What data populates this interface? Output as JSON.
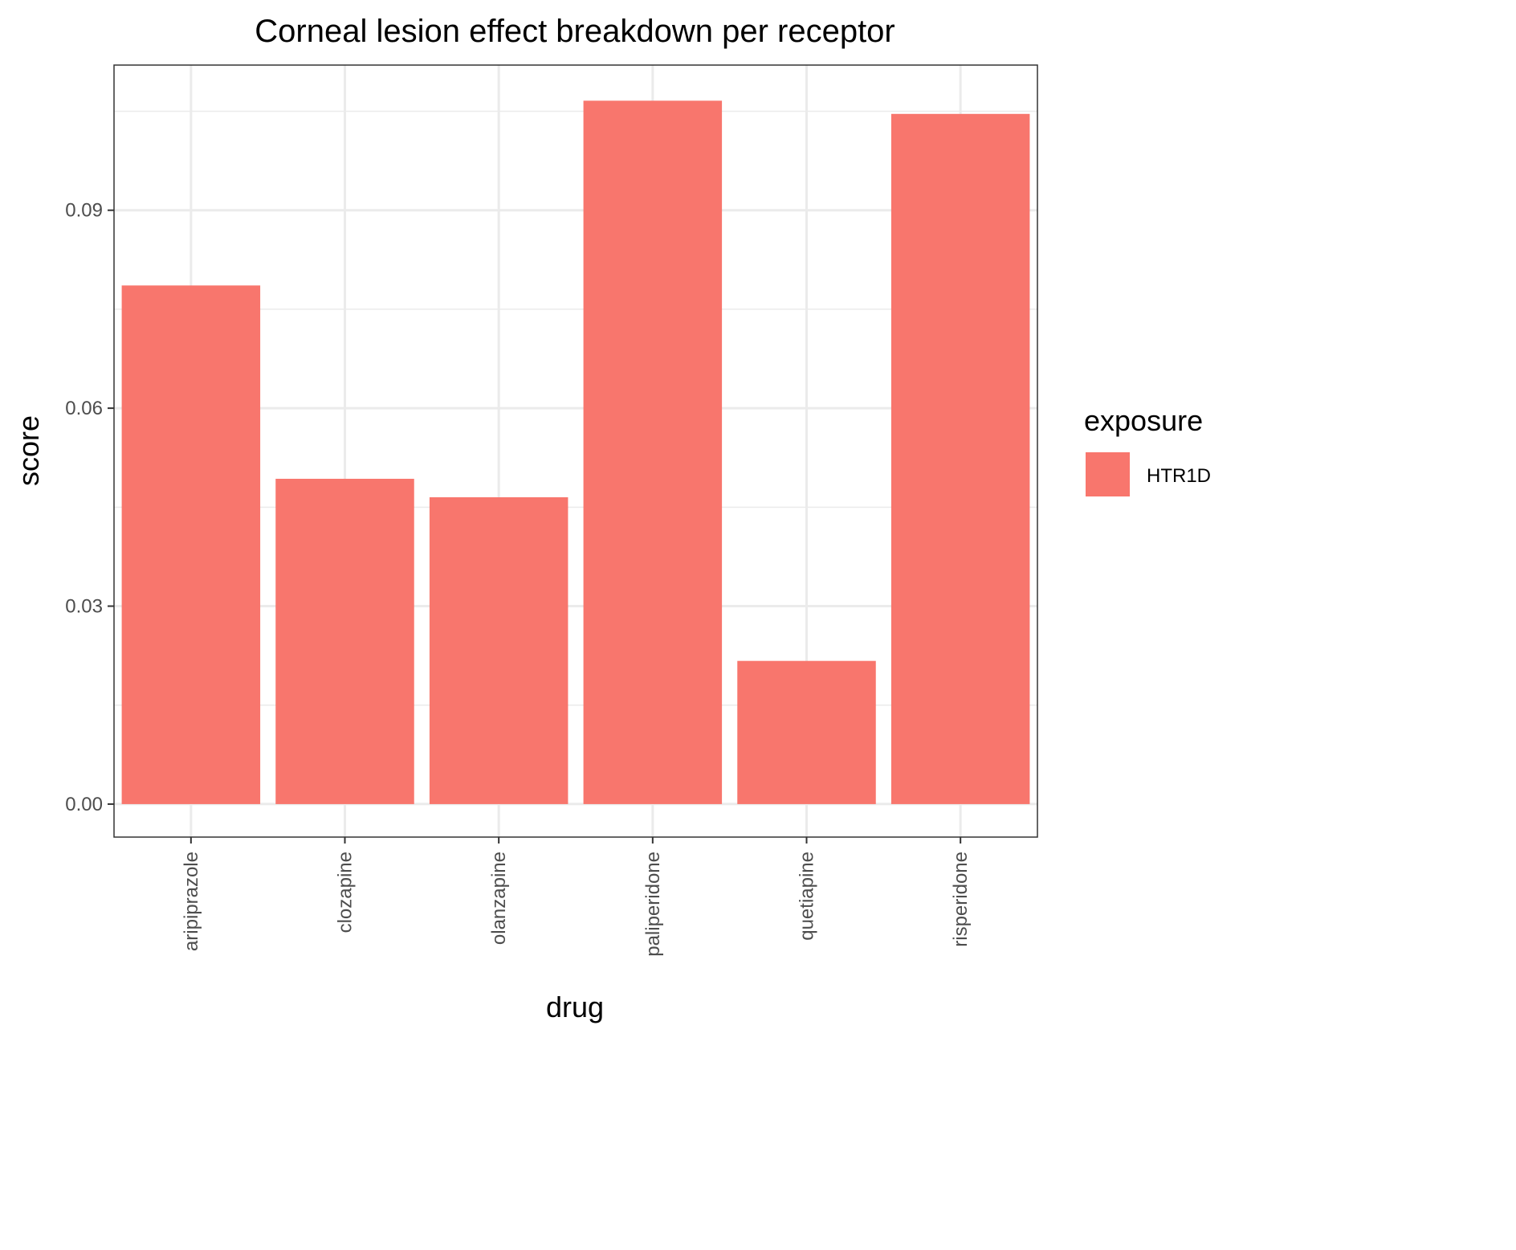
{
  "chart_data": {
    "type": "bar",
    "title": "Corneal lesion effect breakdown per receptor",
    "xlabel": "drug",
    "ylabel": "score",
    "categories": [
      "aripiprazole",
      "clozapine",
      "olanzapine",
      "paliperidone",
      "quetiapine",
      "risperidone"
    ],
    "series": [
      {
        "name": "HTR1D",
        "values": [
          0.0786,
          0.0493,
          0.0465,
          0.1066,
          0.0217,
          0.1046
        ]
      }
    ],
    "ylim": [
      -0.005,
      0.112
    ],
    "yticks": [
      0.0,
      0.03,
      0.06,
      0.09
    ],
    "ytick_labels": [
      "0.00",
      "0.03",
      "0.06",
      "0.09"
    ],
    "grid": true,
    "legend": {
      "title": "exposure",
      "position": "right"
    },
    "colors": {
      "HTR1D": "#f8766d",
      "grid": "#ebebeb",
      "panel_border": "#333333"
    }
  }
}
